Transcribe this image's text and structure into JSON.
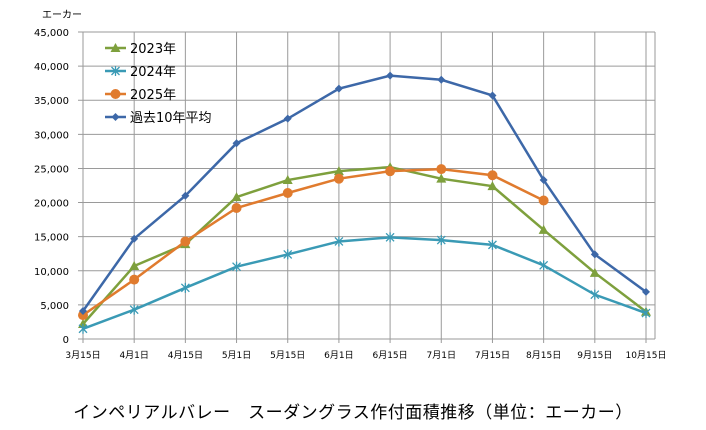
{
  "chart_data": {
    "type": "line",
    "title": "インペリアルバレー　スーダングラス作付面積推移（単位：エーカー）",
    "ylabel": "エーカー",
    "xlabel": "",
    "ylim": [
      0,
      45000
    ],
    "ytick_step": 5000,
    "ytick_labels": [
      "0",
      "5,000",
      "10,000",
      "15,000",
      "20,000",
      "25,000",
      "30,000",
      "35,000",
      "40,000",
      "45,000"
    ],
    "grid": true,
    "legend_position": "top-left",
    "categories": [
      "3月15日",
      "4月1日",
      "4月15日",
      "5月1日",
      "5月15日",
      "6月1日",
      "6月15日",
      "7月1日",
      "7月15日",
      "8月15日",
      "9月15日",
      "10月15日"
    ],
    "series": [
      {
        "name": "2023年",
        "color": "#7ea03d",
        "marker": "triangle",
        "values": [
          2200,
          10700,
          13900,
          20800,
          23300,
          24600,
          25200,
          23500,
          22400,
          16000,
          9700,
          4000
        ]
      },
      {
        "name": "2024年",
        "color": "#3a9ab5",
        "marker": "star",
        "values": [
          1500,
          4300,
          7500,
          10600,
          12400,
          14300,
          14900,
          14500,
          13800,
          10800,
          6500,
          3800
        ]
      },
      {
        "name": "2025年",
        "color": "#e07b2e",
        "marker": "circle",
        "values": [
          3500,
          8700,
          14300,
          19200,
          21400,
          23500,
          24600,
          24900,
          24000,
          20300,
          null,
          null
        ]
      },
      {
        "name": "過去10年平均",
        "color": "#3d68a8",
        "marker": "diamond",
        "values": [
          4100,
          14700,
          21000,
          28700,
          32300,
          36700,
          38600,
          38000,
          35700,
          23300,
          12400,
          6900
        ]
      }
    ]
  }
}
